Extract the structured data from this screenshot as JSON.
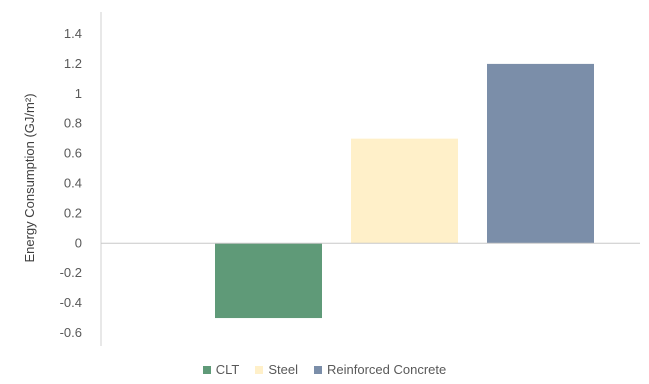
{
  "chart_data": {
    "type": "bar",
    "title": "",
    "xlabel": "",
    "ylabel": "Energy Consumption (GJ/m²)",
    "categories": [
      "CLT",
      "Steel",
      "Reinforced Concrete"
    ],
    "values": [
      -0.5,
      0.7,
      1.2
    ],
    "colors": [
      "#5f9a78",
      "#fff0c9",
      "#7b8ea9"
    ],
    "ylim": [
      -0.6,
      1.4
    ],
    "yticks": [
      1.4,
      1.2,
      1,
      0.8,
      0.6,
      0.4,
      0.2,
      0,
      -0.2,
      -0.4,
      -0.6
    ],
    "ytick_labels": [
      "1.4",
      "1.2",
      "1",
      "0.8",
      "0.6",
      "0.4",
      "0.2",
      "0",
      "-0.2",
      "-0.4",
      "-0.6"
    ],
    "grid": false,
    "legend_position": "bottom",
    "legend": [
      "CLT",
      "Steel",
      "Reinforced Concrete"
    ]
  }
}
